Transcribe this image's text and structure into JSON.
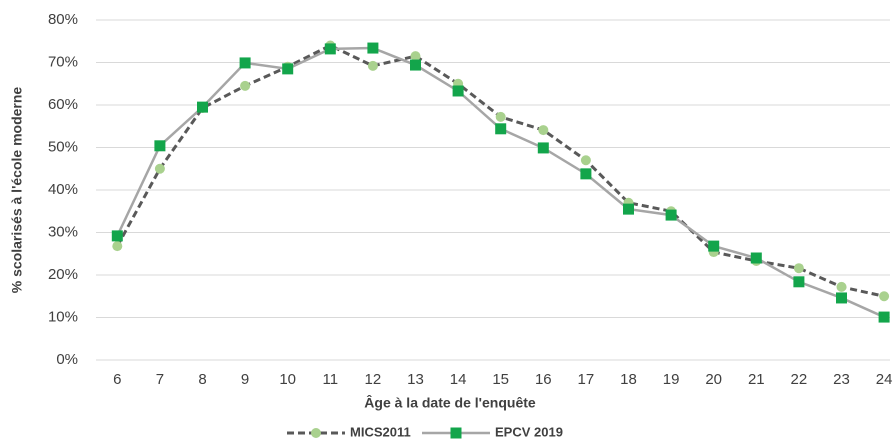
{
  "chart_data": {
    "type": "line",
    "x_label": "Âge à la date de l'enquête",
    "y_label": "% scolarisés à l'école moderne",
    "categories": [
      "6",
      "7",
      "8",
      "9",
      "10",
      "11",
      "12",
      "13",
      "14",
      "15",
      "16",
      "17",
      "18",
      "19",
      "20",
      "21",
      "22",
      "23",
      "24"
    ],
    "series": [
      {
        "name": "MICS2011",
        "color": "#a9d18e",
        "line_color": "#595959",
        "dash": true,
        "marker": "circle",
        "values": [
          26.8,
          45,
          59.3,
          64.5,
          69,
          74,
          69.2,
          71.5,
          65,
          57.2,
          54.1,
          47,
          37,
          35,
          25.4,
          23.3,
          21.6,
          17.2,
          15
        ]
      },
      {
        "name": "EPCV 2019",
        "color": "#13a54b",
        "line_color": "#a6a6a6",
        "dash": false,
        "marker": "square",
        "values": [
          29.2,
          50.4,
          59.5,
          69.9,
          68.5,
          73.2,
          73.4,
          69.4,
          63.3,
          54.4,
          49.9,
          43.8,
          35.5,
          34.1,
          26.8,
          24,
          18.4,
          14.6,
          10.1
        ]
      }
    ],
    "ylim": [
      0,
      80
    ],
    "yticks": [
      {
        "value": 0,
        "label": "0%"
      },
      {
        "value": 10,
        "label": "10%"
      },
      {
        "value": 20,
        "label": "20%"
      },
      {
        "value": 30,
        "label": "30%"
      },
      {
        "value": 40,
        "label": "40%"
      },
      {
        "value": 50,
        "label": "50%"
      },
      {
        "value": 60,
        "label": "60%"
      },
      {
        "value": 70,
        "label": "70%"
      },
      {
        "value": 80,
        "label": "80%"
      }
    ],
    "grid": true
  }
}
